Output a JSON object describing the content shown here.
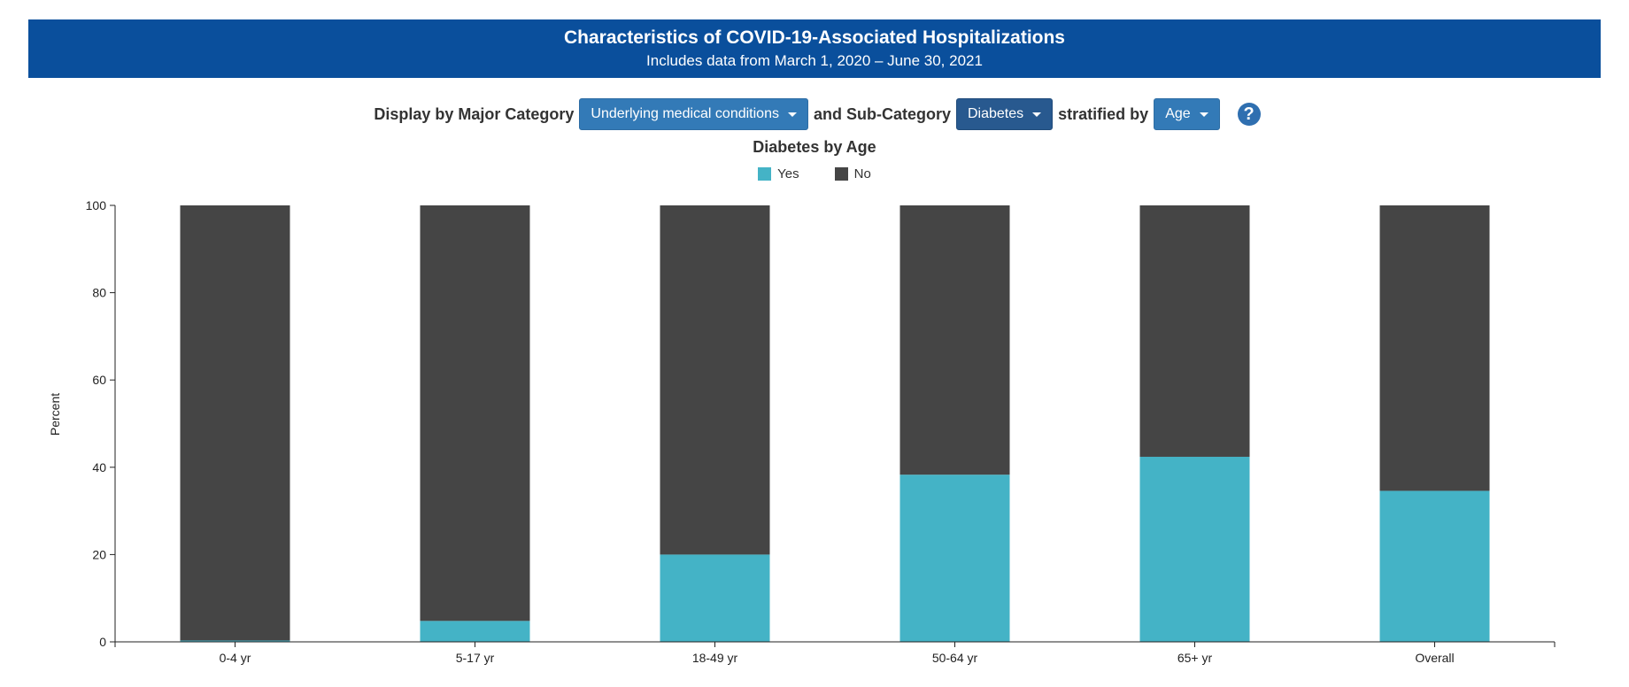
{
  "header": {
    "title": "Characteristics of COVID-19-Associated Hospitalizations",
    "subtitle": "Includes data from March 1, 2020 – June 30, 2021"
  },
  "controls": {
    "major_label": "Display by Major Category",
    "major_value": "Underlying medical conditions",
    "sub_label": "and Sub-Category",
    "sub_value": "Diabetes",
    "strat_label": "stratified by",
    "strat_value": "Age",
    "help_symbol": "?"
  },
  "chart_data": {
    "type": "bar",
    "stacked": true,
    "title": "Diabetes by Age",
    "xlabel": "",
    "ylabel": "Percent",
    "ylim": [
      0,
      100
    ],
    "yticks": [
      0,
      20,
      40,
      60,
      80,
      100
    ],
    "categories": [
      "0-4 yr",
      "5-17 yr",
      "18-49 yr",
      "50-64 yr",
      "65+ yr",
      "Overall"
    ],
    "series": [
      {
        "name": "Yes",
        "color": "#44b3c6",
        "values": [
          0.3,
          4.8,
          20.0,
          38.3,
          42.4,
          34.6
        ]
      },
      {
        "name": "No",
        "color": "#454545",
        "values": [
          99.7,
          95.2,
          80.0,
          61.7,
          57.6,
          65.4
        ]
      }
    ],
    "legend": "top-center",
    "grid": false
  }
}
